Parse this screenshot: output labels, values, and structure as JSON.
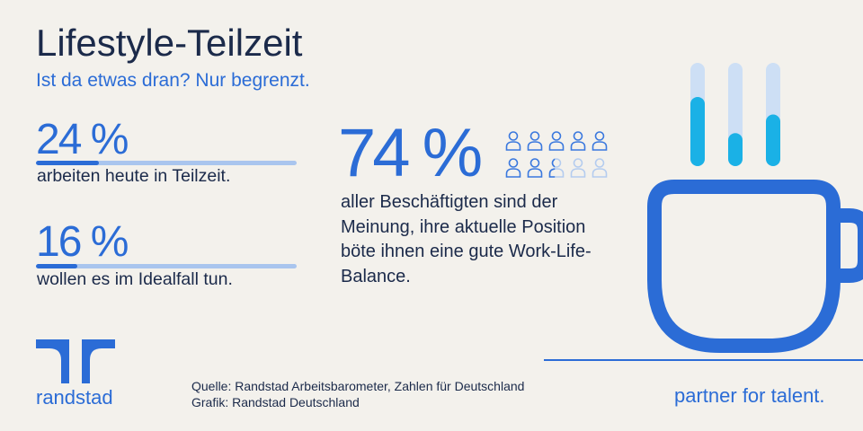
{
  "title": "Lifestyle-Teilzeit",
  "subtitle": "Ist da etwas dran? Nur begrenzt.",
  "chart_data": [
    {
      "type": "bar",
      "orientation": "horizontal",
      "categories": [
        "arbeiten heute in Teilzeit.",
        "wollen es im Idealfall tun."
      ],
      "values": [
        24,
        16
      ],
      "value_labels": [
        "24 %",
        "16 %"
      ],
      "xlim": [
        0,
        100
      ],
      "grid": false,
      "colors": {
        "fill": "#2b6cd6",
        "track": "#a9c5ee"
      }
    },
    {
      "type": "bar",
      "icon": "person-icon",
      "icon_total": 10,
      "values": [
        74
      ],
      "value_labels": [
        "74 %"
      ],
      "xlim": [
        0,
        100
      ],
      "caption_lines": [
        "aller Beschäftigten sind der",
        "Meinung, ihre aktuelle Position",
        "böte ihnen eine gute Work-Life-",
        "Balance."
      ],
      "colors": {
        "filled": "#3a78de",
        "empty": "#b4ccef"
      }
    }
  ],
  "source": {
    "quelle": "Quelle: Randstad Arbeitsbarometer, Zahlen für Deutschland",
    "grafik": "Grafik: Randstad Deutschland"
  },
  "brand": {
    "logo_icon": "randstad-logo-icon",
    "wordmark": "randstad",
    "tagline": "partner for talent."
  },
  "illustration": {
    "icon": "coffee-mug-icon",
    "steam_fill_levels": [
      0.67,
      0.32,
      0.5
    ]
  },
  "colors": {
    "background": "#f3f1ec",
    "text": "#1b2a4a",
    "accent": "#2b6cd6",
    "steam_track": "#cddff5",
    "steam_fill": "#1ab1e6"
  }
}
